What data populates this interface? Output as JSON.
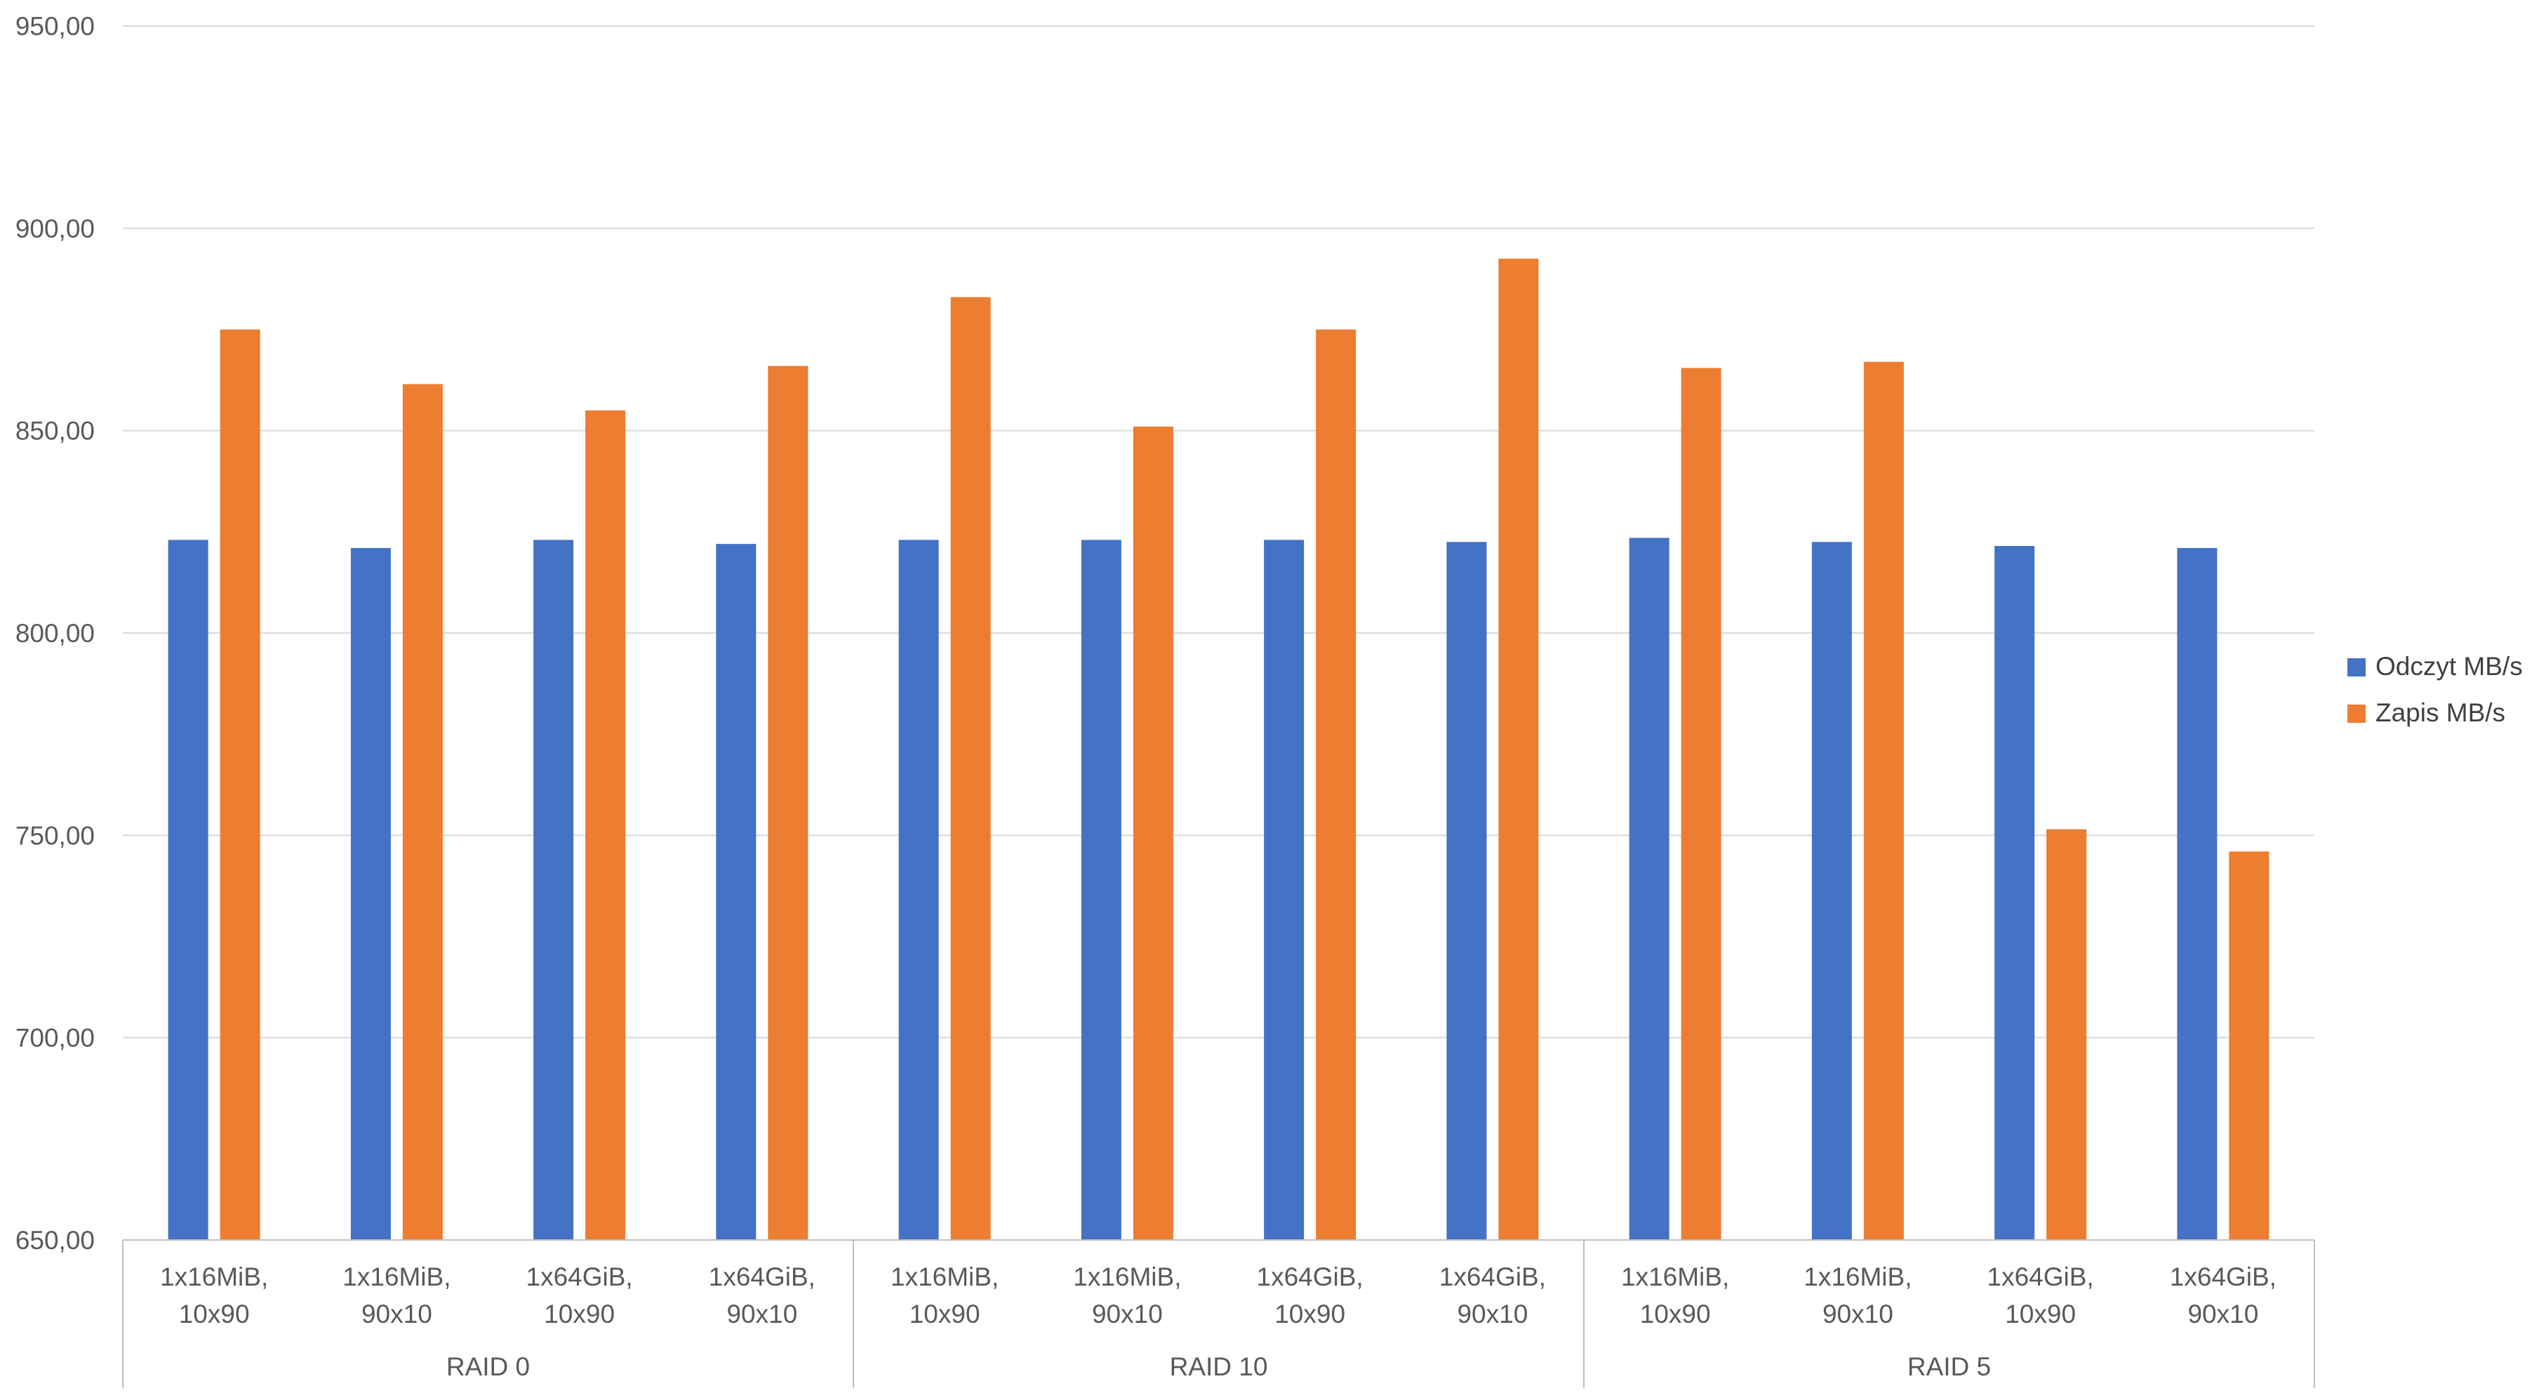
{
  "chart_data": {
    "type": "bar",
    "title": "",
    "xlabel": "",
    "ylabel": "",
    "ylim": [
      650,
      950
    ],
    "yticks": [
      "650,00",
      "700,00",
      "750,00",
      "800,00",
      "850,00",
      "900,00",
      "950,00"
    ],
    "ytick_values": [
      650,
      700,
      750,
      800,
      850,
      900,
      950
    ],
    "grid": true,
    "legend_position": "right",
    "groups": [
      {
        "label": "RAID 0",
        "categories": [
          [
            "1x16MiB,",
            "10x90"
          ],
          [
            "1x16MiB,",
            "90x10"
          ],
          [
            "1x64GiB,",
            "10x90"
          ],
          [
            "1x64GiB,",
            "90x10"
          ]
        ]
      },
      {
        "label": "RAID 10",
        "categories": [
          [
            "1x16MiB,",
            "10x90"
          ],
          [
            "1x16MiB,",
            "90x10"
          ],
          [
            "1x64GiB,",
            "10x90"
          ],
          [
            "1x64GiB,",
            "90x10"
          ]
        ]
      },
      {
        "label": "RAID 5",
        "categories": [
          [
            "1x16MiB,",
            "10x90"
          ],
          [
            "1x16MiB,",
            "90x10"
          ],
          [
            "1x64GiB,",
            "10x90"
          ],
          [
            "1x64GiB,",
            "90x10"
          ]
        ]
      }
    ],
    "series": [
      {
        "name": "Odczyt MB/s",
        "color": "#4472C4",
        "values": [
          823,
          821,
          823,
          822,
          823,
          823,
          823,
          822.5,
          823.5,
          822.5,
          821.5,
          821
        ]
      },
      {
        "name": "Zapis MB/s",
        "color": "#ED7D31",
        "values": [
          875,
          861.5,
          855,
          866,
          883,
          851,
          875,
          892.5,
          865.5,
          867,
          751.5,
          746
        ]
      }
    ]
  }
}
